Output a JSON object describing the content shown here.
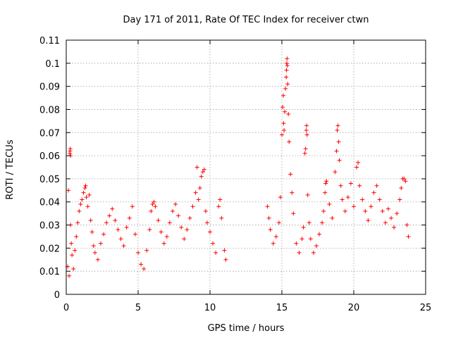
{
  "chart_data": {
    "type": "scatter",
    "title": "Day 171 of 2011, Rate Of TEC Index for receiver ctwn",
    "xlabel": "GPS time / hours",
    "ylabel": "ROTI / TECUs",
    "xlim": [
      0,
      25
    ],
    "ylim": [
      0,
      0.11
    ],
    "x_ticks": [
      0,
      5,
      10,
      15,
      20,
      25
    ],
    "y_ticks": [
      0,
      0.01,
      0.02,
      0.03,
      0.04,
      0.05,
      0.06,
      0.07,
      0.08,
      0.09,
      0.1,
      0.11
    ],
    "x_tick_labels": [
      "0",
      "5",
      "10",
      "15",
      "20",
      "25"
    ],
    "y_tick_labels": [
      "0",
      "0.01",
      "0.02",
      "0.03",
      "0.04",
      "0.05",
      "0.06",
      "0.07",
      "0.08",
      "0.09",
      "0.1",
      "0.11"
    ],
    "grid": true,
    "marker": "+",
    "color": "#ff0000",
    "points": [
      [
        0.1,
        0.012
      ],
      [
        0.2,
        0.008
      ],
      [
        0.25,
        0.061
      ],
      [
        0.26,
        0.062
      ],
      [
        0.28,
        0.063
      ],
      [
        0.3,
        0.06
      ],
      [
        0.15,
        0.045
      ],
      [
        0.3,
        0.03
      ],
      [
        0.35,
        0.022
      ],
      [
        0.4,
        0.017
      ],
      [
        0.5,
        0.011
      ],
      [
        0.6,
        0.019
      ],
      [
        0.7,
        0.025
      ],
      [
        0.8,
        0.031
      ],
      [
        0.9,
        0.036
      ],
      [
        1.0,
        0.039
      ],
      [
        1.1,
        0.041
      ],
      [
        1.2,
        0.044
      ],
      [
        1.3,
        0.046
      ],
      [
        1.35,
        0.047
      ],
      [
        1.4,
        0.042
      ],
      [
        1.5,
        0.038
      ],
      [
        1.6,
        0.043
      ],
      [
        1.7,
        0.032
      ],
      [
        1.8,
        0.027
      ],
      [
        1.9,
        0.021
      ],
      [
        2.0,
        0.018
      ],
      [
        2.2,
        0.015
      ],
      [
        2.4,
        0.022
      ],
      [
        2.6,
        0.026
      ],
      [
        2.8,
        0.031
      ],
      [
        3.0,
        0.034
      ],
      [
        3.2,
        0.037
      ],
      [
        3.4,
        0.032
      ],
      [
        3.6,
        0.028
      ],
      [
        3.8,
        0.024
      ],
      [
        4.0,
        0.021
      ],
      [
        4.2,
        0.029
      ],
      [
        4.4,
        0.033
      ],
      [
        4.6,
        0.038
      ],
      [
        4.8,
        0.026
      ],
      [
        5.0,
        0.018
      ],
      [
        5.2,
        0.013
      ],
      [
        5.4,
        0.011
      ],
      [
        5.6,
        0.019
      ],
      [
        5.8,
        0.028
      ],
      [
        5.9,
        0.036
      ],
      [
        6.0,
        0.039
      ],
      [
        6.1,
        0.04
      ],
      [
        6.2,
        0.038
      ],
      [
        6.4,
        0.032
      ],
      [
        6.6,
        0.027
      ],
      [
        6.8,
        0.022
      ],
      [
        7.0,
        0.025
      ],
      [
        7.2,
        0.031
      ],
      [
        7.4,
        0.036
      ],
      [
        7.6,
        0.039
      ],
      [
        7.8,
        0.034
      ],
      [
        8.0,
        0.029
      ],
      [
        8.2,
        0.024
      ],
      [
        8.4,
        0.028
      ],
      [
        8.6,
        0.033
      ],
      [
        8.8,
        0.038
      ],
      [
        9.0,
        0.044
      ],
      [
        9.1,
        0.055
      ],
      [
        9.2,
        0.041
      ],
      [
        9.3,
        0.046
      ],
      [
        9.4,
        0.051
      ],
      [
        9.5,
        0.053
      ],
      [
        9.6,
        0.054
      ],
      [
        9.7,
        0.036
      ],
      [
        9.8,
        0.031
      ],
      [
        10.0,
        0.027
      ],
      [
        10.2,
        0.022
      ],
      [
        10.4,
        0.018
      ],
      [
        10.6,
        0.038
      ],
      [
        10.7,
        0.041
      ],
      [
        10.8,
        0.033
      ],
      [
        11.0,
        0.019
      ],
      [
        11.1,
        0.015
      ],
      [
        14.0,
        0.038
      ],
      [
        14.1,
        0.033
      ],
      [
        14.2,
        0.028
      ],
      [
        14.4,
        0.022
      ],
      [
        14.6,
        0.025
      ],
      [
        14.8,
        0.031
      ],
      [
        14.9,
        0.042
      ],
      [
        15.0,
        0.069
      ],
      [
        15.05,
        0.081
      ],
      [
        15.1,
        0.086
      ],
      [
        15.12,
        0.074
      ],
      [
        15.15,
        0.071
      ],
      [
        15.2,
        0.079
      ],
      [
        15.25,
        0.089
      ],
      [
        15.3,
        0.094
      ],
      [
        15.32,
        0.097
      ],
      [
        15.34,
        0.1
      ],
      [
        15.36,
        0.102
      ],
      [
        15.38,
        0.099
      ],
      [
        15.4,
        0.091
      ],
      [
        15.45,
        0.078
      ],
      [
        15.5,
        0.066
      ],
      [
        15.6,
        0.052
      ],
      [
        15.7,
        0.044
      ],
      [
        15.8,
        0.035
      ],
      [
        16.0,
        0.022
      ],
      [
        16.2,
        0.018
      ],
      [
        16.4,
        0.024
      ],
      [
        16.5,
        0.029
      ],
      [
        16.6,
        0.061
      ],
      [
        16.65,
        0.063
      ],
      [
        16.7,
        0.071
      ],
      [
        16.72,
        0.073
      ],
      [
        16.75,
        0.069
      ],
      [
        16.8,
        0.043
      ],
      [
        16.9,
        0.031
      ],
      [
        17.0,
        0.024
      ],
      [
        17.2,
        0.018
      ],
      [
        17.4,
        0.021
      ],
      [
        17.6,
        0.026
      ],
      [
        17.8,
        0.031
      ],
      [
        17.9,
        0.036
      ],
      [
        18.0,
        0.044
      ],
      [
        18.05,
        0.048
      ],
      [
        18.1,
        0.049
      ],
      [
        18.3,
        0.039
      ],
      [
        18.5,
        0.033
      ],
      [
        18.7,
        0.053
      ],
      [
        18.8,
        0.062
      ],
      [
        18.85,
        0.071
      ],
      [
        18.9,
        0.073
      ],
      [
        18.95,
        0.066
      ],
      [
        19.0,
        0.058
      ],
      [
        19.1,
        0.047
      ],
      [
        19.2,
        0.041
      ],
      [
        19.4,
        0.036
      ],
      [
        19.6,
        0.042
      ],
      [
        19.8,
        0.048
      ],
      [
        20.0,
        0.038
      ],
      [
        20.2,
        0.055
      ],
      [
        20.3,
        0.057
      ],
      [
        20.4,
        0.047
      ],
      [
        20.6,
        0.041
      ],
      [
        20.8,
        0.036
      ],
      [
        21.0,
        0.032
      ],
      [
        21.2,
        0.038
      ],
      [
        21.4,
        0.044
      ],
      [
        21.6,
        0.047
      ],
      [
        21.8,
        0.041
      ],
      [
        22.0,
        0.036
      ],
      [
        22.2,
        0.031
      ],
      [
        22.4,
        0.037
      ],
      [
        22.6,
        0.033
      ],
      [
        22.8,
        0.029
      ],
      [
        23.0,
        0.035
      ],
      [
        23.2,
        0.041
      ],
      [
        23.3,
        0.046
      ],
      [
        23.4,
        0.05
      ],
      [
        23.5,
        0.05
      ],
      [
        23.6,
        0.049
      ],
      [
        23.7,
        0.03
      ],
      [
        23.8,
        0.025
      ]
    ]
  }
}
